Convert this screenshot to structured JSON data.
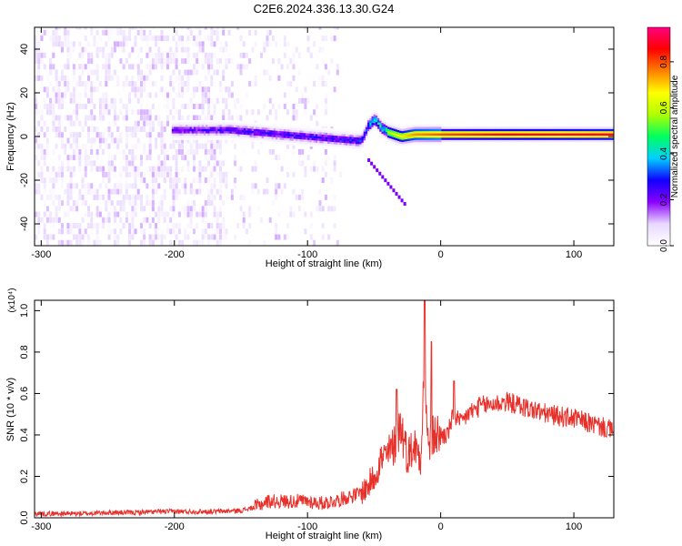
{
  "figure": {
    "title": "C2E6.2024.336.13.30.G24"
  },
  "chart_data": [
    {
      "type": "heatmap",
      "xlabel": "Height of straight line (km)",
      "ylabel": "Frequency (Hz)",
      "xlim": [
        -305,
        130
      ],
      "ylim": [
        -50,
        50
      ],
      "xticks": [
        -300,
        -200,
        -100,
        0,
        100
      ],
      "yticks": [
        -40,
        -20,
        0,
        20,
        40
      ],
      "grid": false,
      "colorbar": {
        "label": "Normalized spectral amplitude",
        "range": [
          0.0,
          0.95
        ],
        "ticks": [
          0.0,
          0.2,
          0.4,
          0.6,
          0.8
        ],
        "colors": [
          "#ffffff",
          "#e8d8ff",
          "#8a00ff",
          "#1000ff",
          "#00d0ff",
          "#00ff60",
          "#b0ff00",
          "#ffff00",
          "#ff8000",
          "#ff0000",
          "#ff0080"
        ]
      },
      "band": {
        "center_freq_hz": [
          [
            -200,
            3
          ],
          [
            -180,
            3
          ],
          [
            -160,
            3
          ],
          [
            -140,
            2
          ],
          [
            -120,
            1
          ],
          [
            -100,
            0
          ],
          [
            -80,
            -1
          ],
          [
            -60,
            -2
          ],
          [
            -55,
            5
          ],
          [
            -50,
            8
          ],
          [
            -45,
            4
          ],
          [
            -40,
            2
          ],
          [
            -30,
            0
          ],
          [
            -20,
            1
          ],
          [
            0,
            1
          ],
          [
            20,
            1
          ],
          [
            40,
            1
          ],
          [
            130,
            1
          ]
        ],
        "peak_amplitude": [
          [
            -200,
            0.25
          ],
          [
            -150,
            0.3
          ],
          [
            -100,
            0.3
          ],
          [
            -60,
            0.35
          ],
          [
            -50,
            0.5
          ],
          [
            -40,
            0.6
          ],
          [
            -20,
            0.75
          ],
          [
            0,
            0.8
          ],
          [
            40,
            0.85
          ],
          [
            130,
            0.9
          ]
        ]
      },
      "scatter_artifact": {
        "x_range": [
          -55,
          -28
        ],
        "freq_range": [
          -10,
          -30
        ]
      },
      "noise_region": {
        "x_range": [
          -305,
          -75
        ],
        "amplitude_max": 0.15
      }
    },
    {
      "type": "line",
      "xlabel": "Height of straight line (km)",
      "ylabel": "SNR (10 * v/v)",
      "y_multiplier": "(x10⁴)",
      "xlim": [
        -305,
        130
      ],
      "ylim": [
        0,
        1.05
      ],
      "xticks": [
        -300,
        -200,
        -100,
        0,
        100
      ],
      "yticks": [
        0.0,
        0.2,
        0.4,
        0.6,
        0.8,
        1.0
      ],
      "grid": false,
      "color": "#e8302a",
      "x": [
        -305,
        -290,
        -270,
        -250,
        -230,
        -210,
        -190,
        -170,
        -150,
        -140,
        -130,
        -120,
        -110,
        -100,
        -90,
        -80,
        -70,
        -60,
        -55,
        -50,
        -45,
        -40,
        -35,
        -30,
        -25,
        -20,
        -15,
        -12,
        -10,
        -5,
        0,
        5,
        10,
        15,
        20,
        25,
        30,
        40,
        50,
        60,
        70,
        80,
        90,
        100,
        110,
        120,
        130
      ],
      "y": [
        0.02,
        0.02,
        0.02,
        0.025,
        0.025,
        0.03,
        0.03,
        0.03,
        0.035,
        0.05,
        0.08,
        0.08,
        0.08,
        0.08,
        0.07,
        0.08,
        0.1,
        0.12,
        0.15,
        0.2,
        0.28,
        0.3,
        0.35,
        0.45,
        0.3,
        0.35,
        0.3,
        0.8,
        0.35,
        0.4,
        0.4,
        0.4,
        0.5,
        0.45,
        0.5,
        0.52,
        0.54,
        0.55,
        0.56,
        0.54,
        0.52,
        0.5,
        0.49,
        0.48,
        0.46,
        0.44,
        0.42
      ],
      "spikes": [
        [
          -33,
          0.62
        ],
        [
          -12,
          1.05
        ],
        [
          -7,
          0.85
        ],
        [
          10,
          0.66
        ]
      ]
    }
  ]
}
